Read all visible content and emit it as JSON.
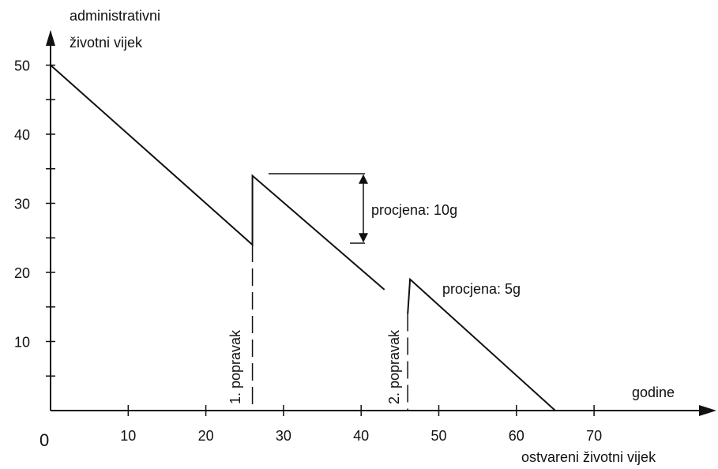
{
  "diagram": {
    "y_axis_title_line1": "administrativni",
    "y_axis_title_line2": "životni vijek",
    "x_axis_title_right": "godine",
    "x_axis_title_bottom": "ostvareni životni vijek",
    "origin_label": "0",
    "annotation_1": "procjena: 10g",
    "annotation_2": "procjena: 5g",
    "repair_1": "1. popravak",
    "repair_2": "2. popravak"
  },
  "chart_data": {
    "type": "line",
    "xlabel": "ostvareni životni vijek",
    "ylabel": "administrativni životni vijek",
    "x_ticks": [
      "10",
      "20",
      "30",
      "40",
      "50",
      "60",
      "70"
    ],
    "y_ticks": [
      "10",
      "20",
      "30",
      "40",
      "50"
    ],
    "xlim": [
      0,
      82
    ],
    "ylim": [
      0,
      50
    ],
    "series": [
      {
        "x": [
          0,
          26,
          26,
          43
        ],
        "y": [
          50,
          24,
          34,
          17.5
        ]
      },
      {
        "x": [
          46,
          46.3,
          65
        ],
        "y": [
          14,
          19,
          0
        ]
      }
    ],
    "repairs_x": [
      26,
      46
    ]
  }
}
